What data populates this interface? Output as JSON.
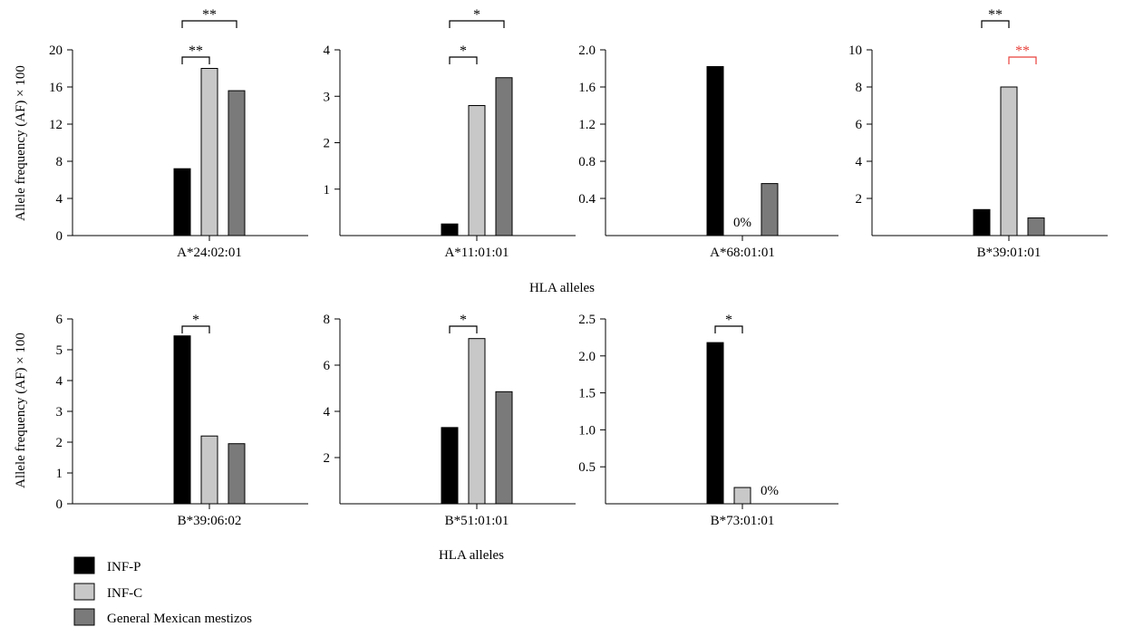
{
  "figure": {
    "rows": [
      {
        "ylabel": "Allele frequency (AF) × 100",
        "xlabel": "HLA alleles"
      },
      {
        "ylabel": "Allele frequency (AF) × 100",
        "xlabel": "HLA alleles"
      }
    ]
  },
  "legend": {
    "placement": "bottom-left",
    "items": [
      {
        "label": "INF-P",
        "color": "#000000"
      },
      {
        "label": "INF-C",
        "color": "#c8c8c8"
      },
      {
        "label": "General Mexican mestizos",
        "color": "#7a7a7a"
      }
    ]
  },
  "colors": {
    "axis": "#000000",
    "sig_default": "#000000",
    "sig_highlight": "#e8413c",
    "bar_edge": "#000000"
  },
  "chart_data": [
    {
      "type": "bar",
      "row": 0,
      "category": "A*24:02:01",
      "series": [
        {
          "name": "INF-P",
          "value": 7.2
        },
        {
          "name": "INF-C",
          "value": 18.0
        },
        {
          "name": "General Mexican mestizos",
          "value": 15.6
        }
      ],
      "ylim": [
        0,
        20
      ],
      "yticks": [
        "0",
        "4",
        "8",
        "12",
        "16",
        "20"
      ],
      "ytick_values": [
        0,
        4,
        8,
        12,
        16,
        20
      ],
      "zero_labels": [],
      "significance": [
        {
          "from": "INF-P",
          "to": "General Mexican mestizos",
          "label": "**",
          "color": "#000000",
          "level": 2
        },
        {
          "from": "INF-P",
          "to": "INF-C",
          "label": "**",
          "color": "#000000",
          "level": 1
        }
      ]
    },
    {
      "type": "bar",
      "row": 0,
      "category": "A*11:01:01",
      "series": [
        {
          "name": "INF-P",
          "value": 0.25
        },
        {
          "name": "INF-C",
          "value": 2.8
        },
        {
          "name": "General Mexican mestizos",
          "value": 3.4
        }
      ],
      "ylim": [
        0,
        4
      ],
      "yticks": [
        "1",
        "2",
        "3",
        "4"
      ],
      "ytick_values": [
        1,
        2,
        3,
        4
      ],
      "zero_labels": [],
      "significance": [
        {
          "from": "INF-P",
          "to": "General Mexican mestizos",
          "label": "*",
          "color": "#000000",
          "level": 2
        },
        {
          "from": "INF-P",
          "to": "INF-C",
          "label": "*",
          "color": "#000000",
          "level": 1
        }
      ]
    },
    {
      "type": "bar",
      "row": 0,
      "category": "A*68:01:01",
      "series": [
        {
          "name": "INF-P",
          "value": 1.82
        },
        {
          "name": "INF-C",
          "value": 0
        },
        {
          "name": "General Mexican mestizos",
          "value": 0.56
        }
      ],
      "ylim": [
        0,
        2.0
      ],
      "yticks": [
        "0.4",
        "0.8",
        "1.2",
        "1.6",
        "2.0"
      ],
      "ytick_values": [
        0.4,
        0.8,
        1.2,
        1.6,
        2.0
      ],
      "zero_labels": [
        {
          "series": "INF-C",
          "text": "0%"
        }
      ],
      "significance": []
    },
    {
      "type": "bar",
      "row": 0,
      "category": "B*39:01:01",
      "series": [
        {
          "name": "INF-P",
          "value": 1.4
        },
        {
          "name": "INF-C",
          "value": 8.0
        },
        {
          "name": "General Mexican mestizos",
          "value": 0.95
        }
      ],
      "ylim": [
        0,
        10
      ],
      "yticks": [
        "2",
        "4",
        "6",
        "8",
        "10"
      ],
      "ytick_values": [
        2,
        4,
        6,
        8,
        10
      ],
      "zero_labels": [],
      "significance": [
        {
          "from": "INF-P",
          "to": "INF-C",
          "label": "**",
          "color": "#000000",
          "level": 2
        },
        {
          "from": "INF-C",
          "to": "General Mexican mestizos",
          "label": "**",
          "color": "#e8413c",
          "level": 1
        }
      ]
    },
    {
      "type": "bar",
      "row": 1,
      "category": "B*39:06:02",
      "series": [
        {
          "name": "INF-P",
          "value": 5.45
        },
        {
          "name": "INF-C",
          "value": 2.2
        },
        {
          "name": "General Mexican mestizos",
          "value": 1.95
        }
      ],
      "ylim": [
        0,
        6
      ],
      "yticks": [
        "0",
        "1",
        "2",
        "3",
        "4",
        "5",
        "6"
      ],
      "ytick_values": [
        0,
        1,
        2,
        3,
        4,
        5,
        6
      ],
      "zero_labels": [],
      "significance": [
        {
          "from": "INF-P",
          "to": "INF-C",
          "label": "*",
          "color": "#000000",
          "level": 1
        }
      ]
    },
    {
      "type": "bar",
      "row": 1,
      "category": "B*51:01:01",
      "series": [
        {
          "name": "INF-P",
          "value": 3.3
        },
        {
          "name": "INF-C",
          "value": 7.15
        },
        {
          "name": "General Mexican mestizos",
          "value": 4.85
        }
      ],
      "ylim": [
        0,
        8
      ],
      "yticks": [
        "2",
        "4",
        "6",
        "8"
      ],
      "ytick_values": [
        2,
        4,
        6,
        8
      ],
      "zero_labels": [],
      "significance": [
        {
          "from": "INF-P",
          "to": "INF-C",
          "label": "*",
          "color": "#000000",
          "level": 1
        }
      ]
    },
    {
      "type": "bar",
      "row": 1,
      "category": "B*73:01:01",
      "series": [
        {
          "name": "INF-P",
          "value": 2.18
        },
        {
          "name": "INF-C",
          "value": 0.22
        },
        {
          "name": "General Mexican mestizos",
          "value": 0
        }
      ],
      "ylim": [
        0,
        2.5
      ],
      "yticks": [
        "0.5",
        "1.0",
        "1.5",
        "2.0",
        "2.5"
      ],
      "ytick_values": [
        0.5,
        1.0,
        1.5,
        2.0,
        2.5
      ],
      "zero_labels": [
        {
          "series": "General Mexican mestizos",
          "text": "0%"
        }
      ],
      "significance": [
        {
          "from": "INF-P",
          "to": "INF-C",
          "label": "*",
          "color": "#000000",
          "level": 1
        }
      ]
    }
  ]
}
